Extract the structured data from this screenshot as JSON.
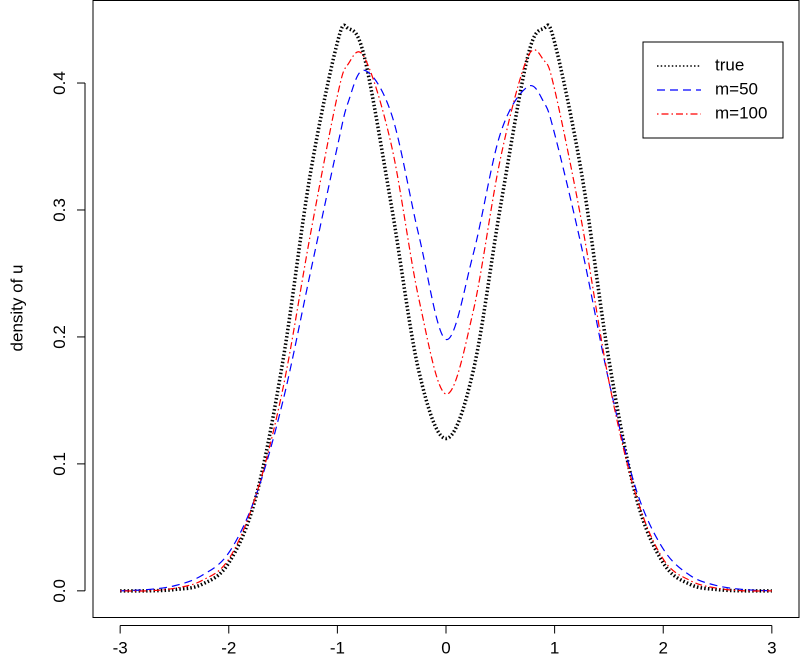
{
  "chart_data": {
    "type": "line",
    "y_label": "density of u",
    "x": [
      -3,
      -2.75,
      -2.5,
      -2.25,
      -2,
      -1.75,
      -1.5,
      -1.25,
      -1,
      -0.9,
      -0.75,
      -0.5,
      -0.25,
      0,
      0.25,
      0.5,
      0.75,
      0.9,
      1,
      1.25,
      1.5,
      1.75,
      2,
      2.25,
      2.5,
      2.75,
      3
    ],
    "series": [
      {
        "name": "true",
        "color": "#000000",
        "dash": "dotted",
        "values": [
          0,
          0,
          0.001,
          0.005,
          0.022,
          0.074,
          0.182,
          0.328,
          0.432,
          0.443,
          0.42,
          0.302,
          0.173,
          0.12,
          0.173,
          0.302,
          0.42,
          0.443,
          0.432,
          0.328,
          0.182,
          0.074,
          0.022,
          0.005,
          0.001,
          0,
          0
        ]
      },
      {
        "name": "m=50",
        "color": "#0000ff",
        "dash": "dashed",
        "values": [
          0,
          0.001,
          0.004,
          0.012,
          0.03,
          0.075,
          0.15,
          0.25,
          0.35,
          0.385,
          0.41,
          0.375,
          0.28,
          0.198,
          0.265,
          0.36,
          0.397,
          0.385,
          0.36,
          0.27,
          0.165,
          0.08,
          0.033,
          0.012,
          0.004,
          0.001,
          0
        ]
      },
      {
        "name": "m=100",
        "color": "#ff0000",
        "dash": "dotdash",
        "values": [
          0,
          0,
          0.002,
          0.008,
          0.025,
          0.075,
          0.16,
          0.28,
          0.39,
          0.415,
          0.42,
          0.35,
          0.23,
          0.155,
          0.22,
          0.34,
          0.42,
          0.418,
          0.395,
          0.29,
          0.165,
          0.075,
          0.025,
          0.008,
          0.002,
          0,
          0
        ]
      }
    ],
    "xlim": [
      -3.25,
      3.25
    ],
    "ylim": [
      -0.021,
      0.465
    ],
    "xticks": [
      -3,
      -2,
      -1,
      0,
      1,
      2,
      3
    ],
    "yticks": [
      {
        "value": 0,
        "label": "0.0"
      },
      0.1,
      0.2,
      0.3,
      0.4
    ],
    "legend": "top-right"
  }
}
